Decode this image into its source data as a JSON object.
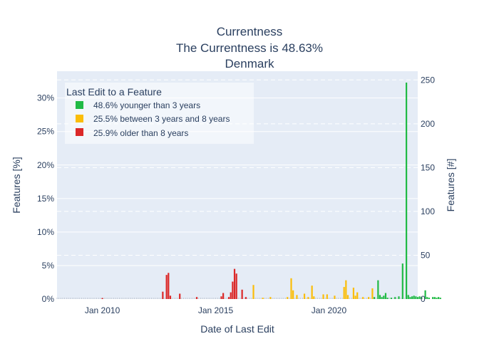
{
  "chart_data": {
    "type": "bar",
    "title": [
      "Currentness",
      "The Currentness is 48.63%",
      "Denmark"
    ],
    "xlabel": "Date of Last Edit",
    "ylabel_left": "Features [%]",
    "ylabel_right": "Features [#]",
    "x_ticks": [
      "Jan 2010",
      "Jan 2015",
      "Jan 2020"
    ],
    "x_range": [
      "2008-01",
      "2023-12"
    ],
    "y_left_ticks": [
      "0%",
      "5%",
      "10%",
      "15%",
      "20%",
      "25%",
      "30%"
    ],
    "y_left_range": [
      0,
      34
    ],
    "y_right_ticks": [
      "0",
      "50",
      "100",
      "150",
      "200",
      "250"
    ],
    "y_right_range": [
      0,
      260
    ],
    "grid": true,
    "legend": {
      "title": "Last Edit to a Feature",
      "placement": "top-left",
      "items": [
        {
          "label": "48.6% younger than 3 years",
          "color": "#21ba45"
        },
        {
          "label": "25.5% between 3 years and 8 years",
          "color": "#fbbd08"
        },
        {
          "label": "25.9% older than 8 years",
          "color": "#db2828"
        }
      ]
    },
    "series": [
      {
        "category": "older than 8 years",
        "color": "#db2828",
        "points": [
          {
            "month": "2010-01",
            "value": 0.15
          },
          {
            "month": "2012-09",
            "value": 1.1
          },
          {
            "month": "2012-11",
            "value": 3.6
          },
          {
            "month": "2012-12",
            "value": 3.9
          },
          {
            "month": "2013-01",
            "value": 0.5
          },
          {
            "month": "2013-06",
            "value": 0.8
          },
          {
            "month": "2014-03",
            "value": 0.3
          },
          {
            "month": "2015-04",
            "value": 0.4
          },
          {
            "month": "2015-05",
            "value": 0.9
          },
          {
            "month": "2015-08",
            "value": 0.3
          },
          {
            "month": "2015-09",
            "value": 1.0
          },
          {
            "month": "2015-10",
            "value": 2.6
          },
          {
            "month": "2015-11",
            "value": 4.5
          },
          {
            "month": "2015-12",
            "value": 3.8
          },
          {
            "month": "2016-03",
            "value": 1.4
          },
          {
            "month": "2016-05",
            "value": 0.3
          }
        ]
      },
      {
        "category": "between 3 years and 8 years",
        "color": "#fbbd08",
        "points": [
          {
            "month": "2016-09",
            "value": 2.1
          },
          {
            "month": "2017-02",
            "value": 0.2
          },
          {
            "month": "2017-06",
            "value": 0.3
          },
          {
            "month": "2018-03",
            "value": 0.3
          },
          {
            "month": "2018-05",
            "value": 3.1
          },
          {
            "month": "2018-06",
            "value": 1.3
          },
          {
            "month": "2018-08",
            "value": 0.6
          },
          {
            "month": "2018-12",
            "value": 0.8
          },
          {
            "month": "2019-02",
            "value": 0.3
          },
          {
            "month": "2019-04",
            "value": 2.0
          },
          {
            "month": "2019-05",
            "value": 0.4
          },
          {
            "month": "2019-10",
            "value": 0.7
          },
          {
            "month": "2019-12",
            "value": 0.7
          },
          {
            "month": "2020-04",
            "value": 0.5
          },
          {
            "month": "2020-09",
            "value": 1.8
          },
          {
            "month": "2020-10",
            "value": 2.8
          },
          {
            "month": "2020-11",
            "value": 0.6
          },
          {
            "month": "2021-02",
            "value": 1.7
          },
          {
            "month": "2021-03",
            "value": 0.5
          },
          {
            "month": "2021-04",
            "value": 1.0
          },
          {
            "month": "2021-07",
            "value": 0.3
          },
          {
            "month": "2021-10",
            "value": 0.3
          },
          {
            "month": "2021-12",
            "value": 1.6
          }
        ]
      },
      {
        "category": "younger than 3 years",
        "color": "#21ba45",
        "points": [
          {
            "month": "2022-01",
            "value": 0.3
          },
          {
            "month": "2022-03",
            "value": 2.8
          },
          {
            "month": "2022-04",
            "value": 0.6
          },
          {
            "month": "2022-05",
            "value": 0.3
          },
          {
            "month": "2022-06",
            "value": 0.5
          },
          {
            "month": "2022-07",
            "value": 0.9
          },
          {
            "month": "2022-08",
            "value": 0.2
          },
          {
            "month": "2022-10",
            "value": 0.2
          },
          {
            "month": "2022-12",
            "value": 0.3
          },
          {
            "month": "2023-02",
            "value": 0.4
          },
          {
            "month": "2023-04",
            "value": 5.3
          },
          {
            "month": "2023-06",
            "value": 32.3
          },
          {
            "month": "2023-07",
            "value": 0.6
          },
          {
            "month": "2023-08",
            "value": 0.3
          },
          {
            "month": "2023-09",
            "value": 0.4
          },
          {
            "month": "2023-10",
            "value": 0.5
          },
          {
            "month": "2023-11",
            "value": 0.4
          },
          {
            "month": "2023-12",
            "value": 0.3
          },
          {
            "month": "2024-01",
            "value": 0.4
          },
          {
            "month": "2024-02",
            "value": 0.3
          },
          {
            "month": "2024-04",
            "value": 1.3
          },
          {
            "month": "2024-05",
            "value": 0.3
          },
          {
            "month": "2024-06",
            "value": 0.2
          },
          {
            "month": "2024-08",
            "value": 0.3
          },
          {
            "month": "2024-09",
            "value": 0.3
          },
          {
            "month": "2024-10",
            "value": 0.2
          },
          {
            "month": "2024-11",
            "value": 0.3
          },
          {
            "month": "2024-12",
            "value": 0.2
          }
        ]
      }
    ]
  }
}
